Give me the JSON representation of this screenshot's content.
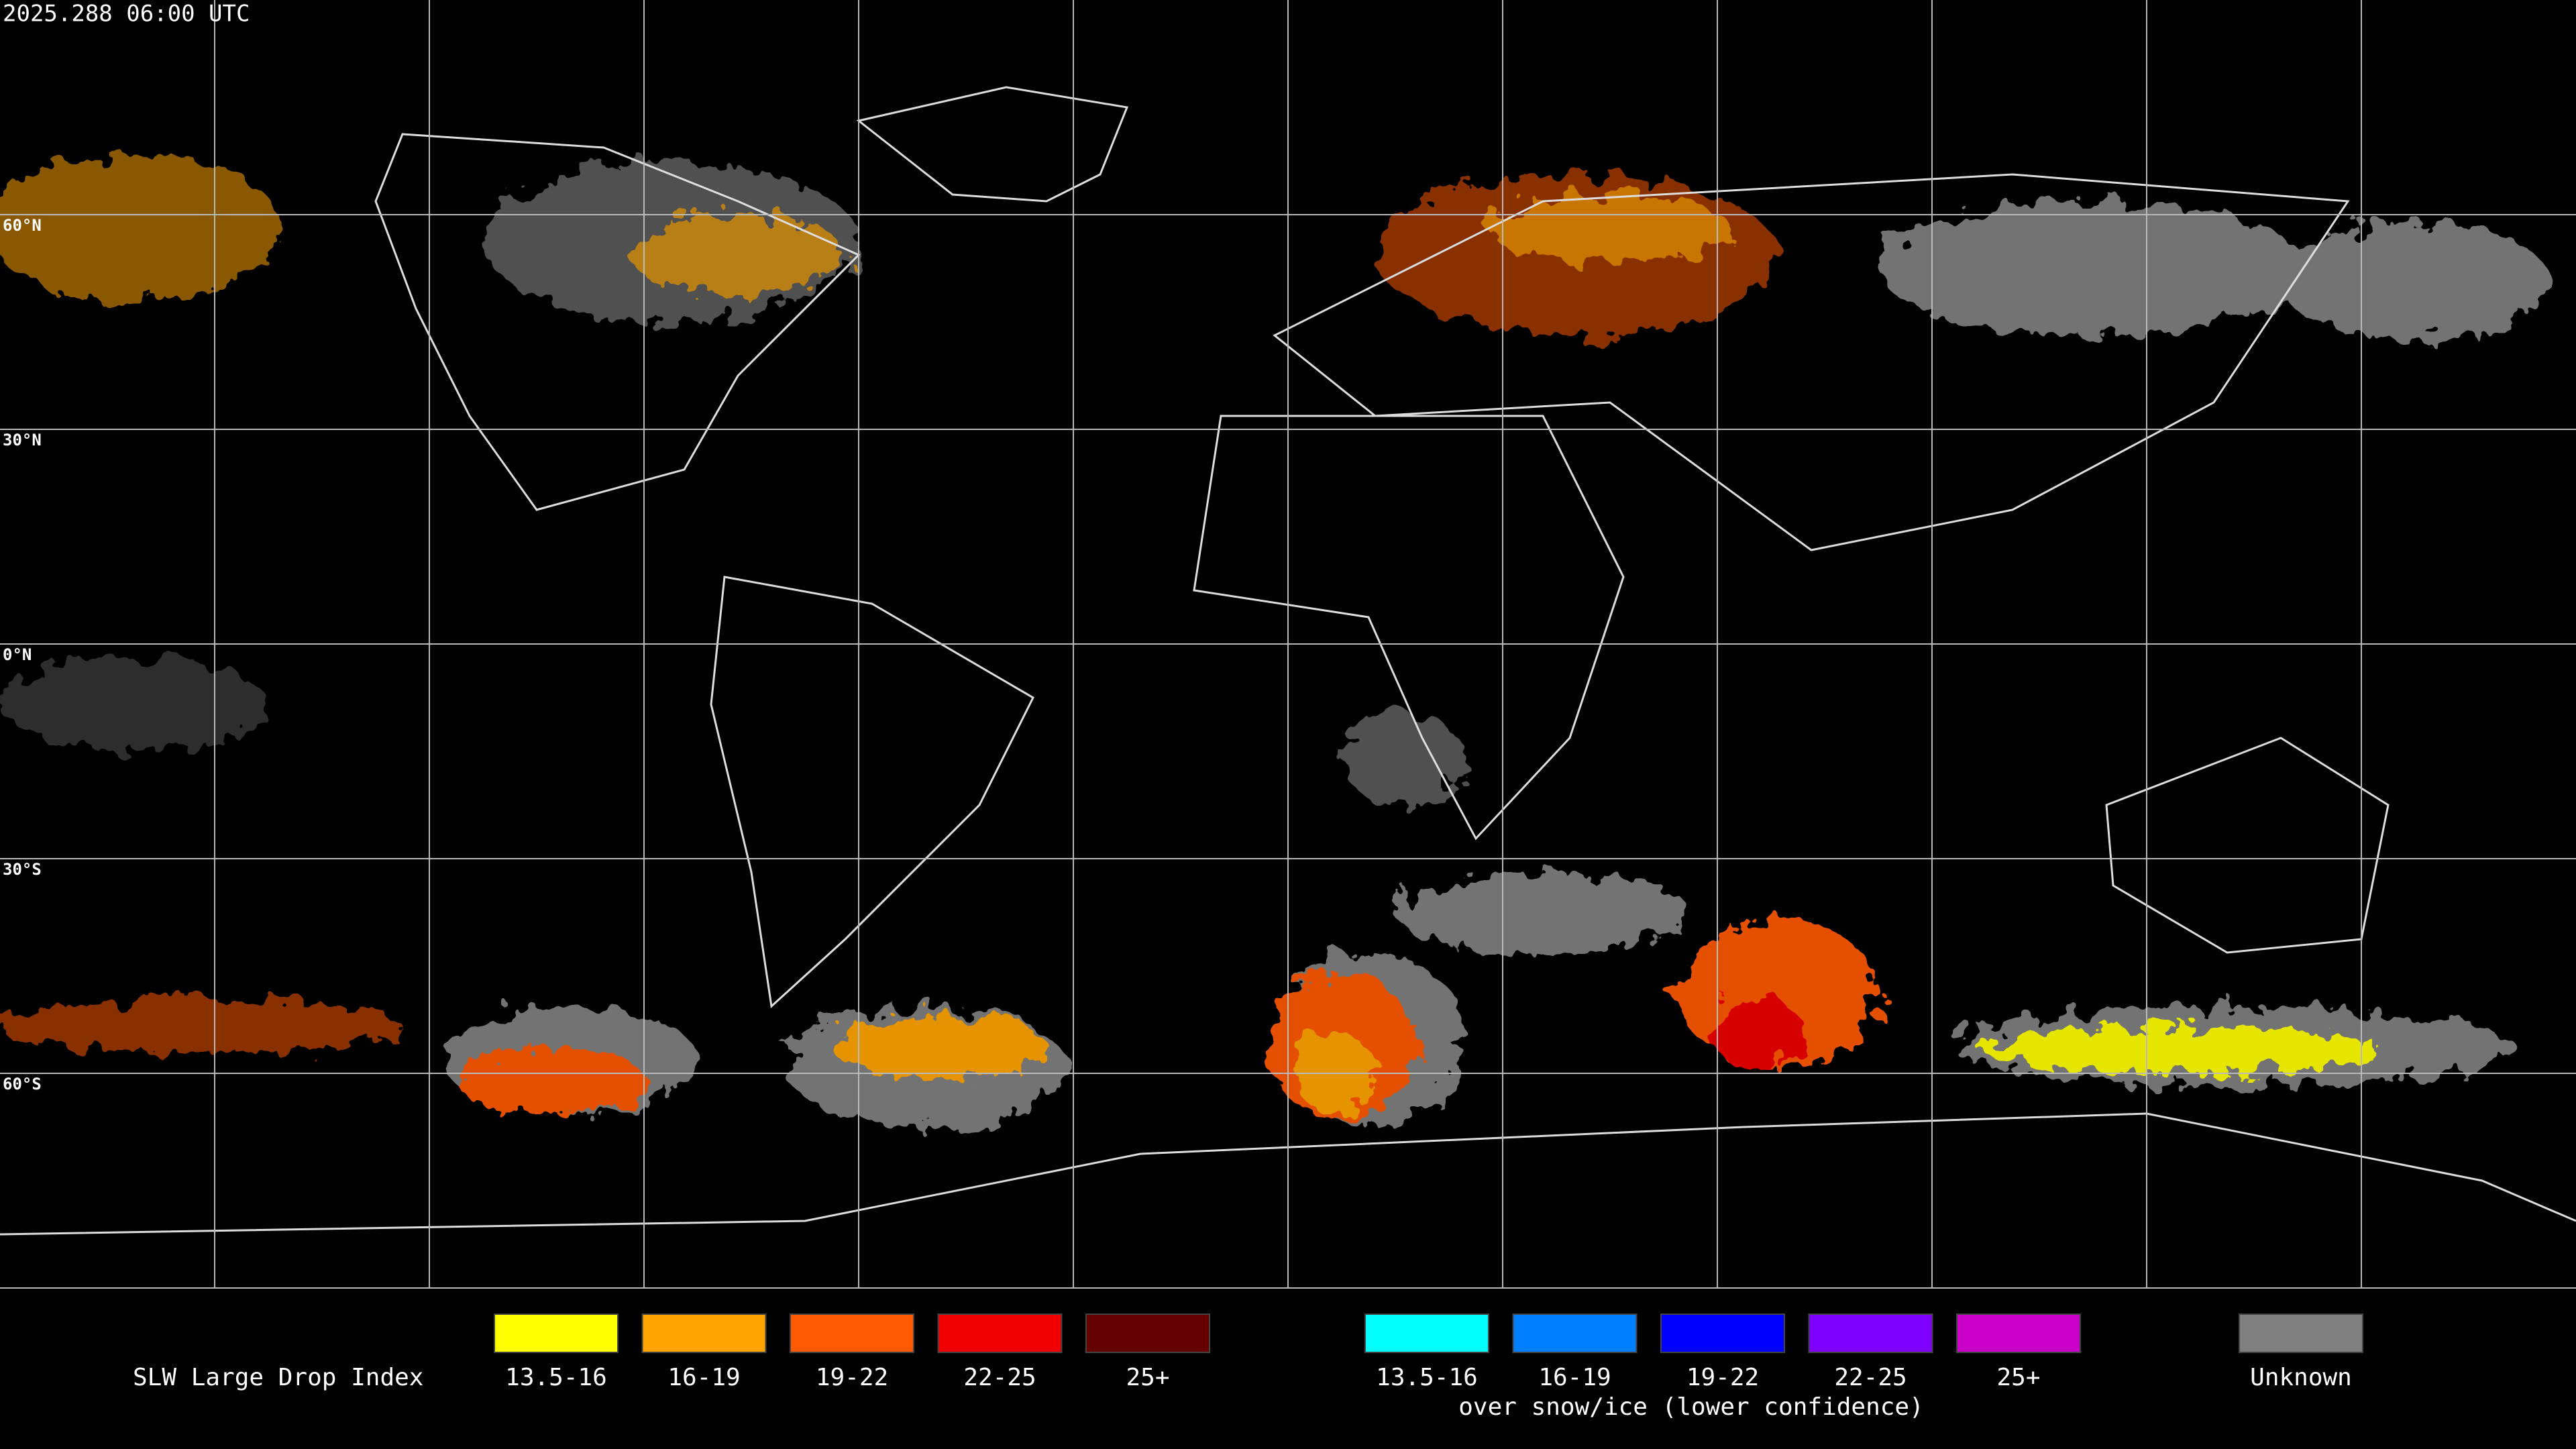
{
  "header": {
    "timestamp": "2025.288 06:00 UTC"
  },
  "grid": {
    "lat_labels": [
      "60°N",
      "30°N",
      "0°N",
      "30°S",
      "60°S"
    ]
  },
  "legend": {
    "title": "SLW Large Drop Index",
    "items": [
      {
        "label": "13.5-16",
        "color": "#ffff00"
      },
      {
        "label": "16-19",
        "color": "#ffa500"
      },
      {
        "label": "19-22",
        "color": "#ff5a00"
      },
      {
        "label": "22-25",
        "color": "#f00000"
      },
      {
        "label": "25+",
        "color": "#640000"
      }
    ],
    "snow_items": [
      {
        "label": "13.5-16",
        "color": "#00ffff"
      },
      {
        "label": "16-19",
        "color": "#0080ff"
      },
      {
        "label": "19-22",
        "color": "#0000ff"
      },
      {
        "label": "22-25",
        "color": "#8000ff"
      },
      {
        "label": "25+",
        "color": "#c800c8"
      }
    ],
    "snow_note": "over snow/ice (lower confidence)",
    "unknown": {
      "label": "Unknown",
      "color": "#808080"
    }
  }
}
